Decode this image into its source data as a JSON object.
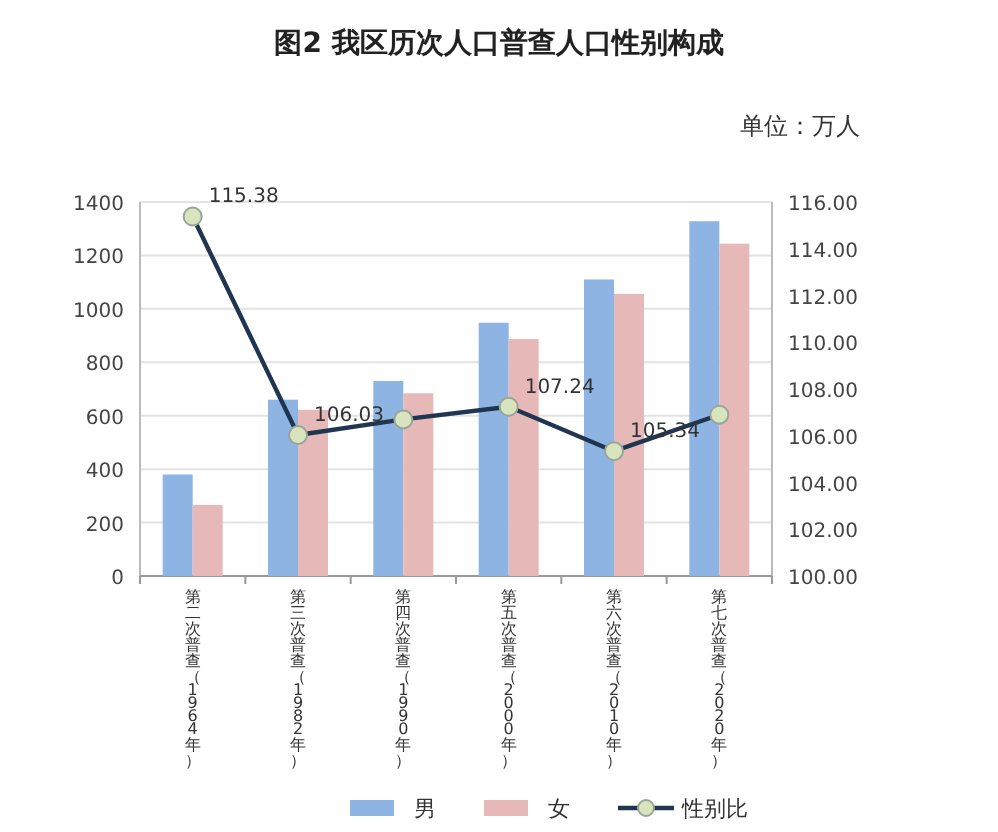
{
  "chart_data": {
    "type": "bar",
    "title": "图2 我区历次人口普查人口性别构成",
    "annotations": [
      "单位：万人"
    ],
    "categories": [
      "第二次普查（1964年）",
      "第三次普查（1982年）",
      "第四次普查（1990年）",
      "第五次普查（2000年）",
      "第六次普查（2010年）",
      "第七次普查（2020年）"
    ],
    "series": [
      {
        "name": "男",
        "color": "#8eb4e3",
        "values": [
          380,
          660,
          730,
          948,
          1110,
          1328
        ]
      },
      {
        "name": "女",
        "color": "#e6b9b8",
        "values": [
          266,
          622,
          684,
          887,
          1056,
          1244
        ]
      },
      {
        "name": "性别比",
        "type": "line",
        "axis": "y2",
        "color": "#1f3550",
        "marker": "circle",
        "values": [
          115.38,
          106.03,
          106.7,
          107.24,
          105.34,
          106.9
        ],
        "value_labels": [
          "115.38",
          "106.03",
          null,
          "107.24",
          "105.34",
          null
        ]
      }
    ],
    "ylim": [
      0,
      1400
    ],
    "yticks": [
      0,
      200,
      400,
      600,
      800,
      1000,
      1200,
      1400
    ],
    "y2lim": [
      100,
      116
    ],
    "y2ticks": [
      {
        "value": 100,
        "label": "100.00"
      },
      {
        "value": 102,
        "label": "102.00"
      },
      {
        "value": 104,
        "label": "104.00"
      },
      {
        "value": 106,
        "label": "106.00"
      },
      {
        "value": 108,
        "label": "108.00"
      },
      {
        "value": 110,
        "label": "110.00"
      },
      {
        "value": 112,
        "label": "112.00"
      },
      {
        "value": 114,
        "label": "114.00"
      },
      {
        "value": 116,
        "label": "116.00"
      }
    ],
    "grid": "y",
    "legend": "bottom"
  }
}
